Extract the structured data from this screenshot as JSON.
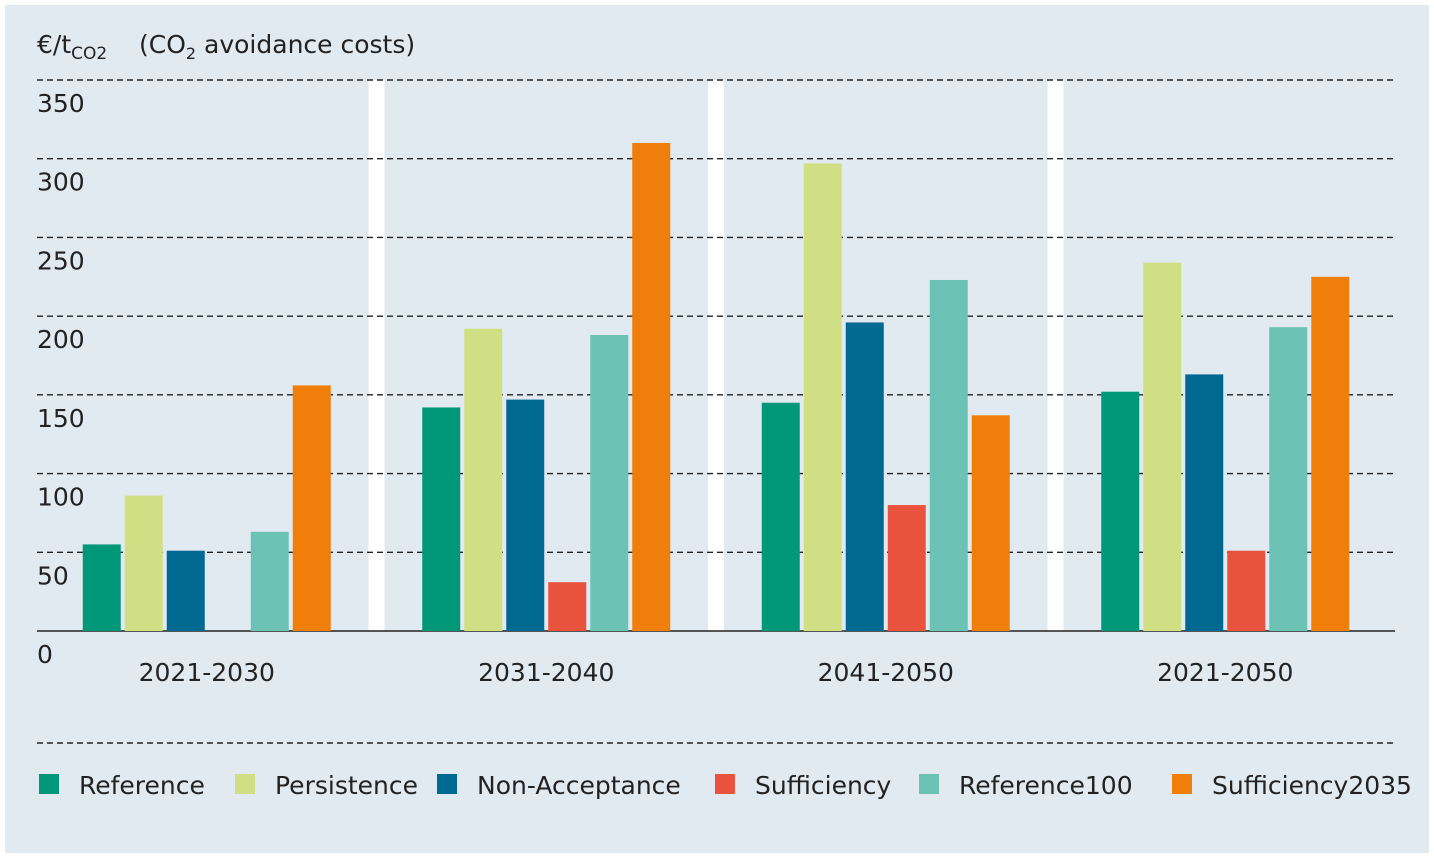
{
  "chart_data": {
    "type": "bar",
    "ylabel_unit": "€/t",
    "ylabel_unit_sub": "CO2",
    "ylabel_desc_pre": "(CO",
    "ylabel_desc_sub": "2",
    "ylabel_desc_post": " avoidance costs)",
    "ylim": [
      0,
      350
    ],
    "yticks": [
      0,
      50,
      100,
      150,
      200,
      250,
      300,
      350
    ],
    "grid": true,
    "legend_position": "bottom",
    "categories": [
      "2021-2030",
      "2031-2040",
      "2041-2050",
      "2021-2050"
    ],
    "series": [
      {
        "name": "Reference",
        "color": "#009878",
        "values": [
          55,
          142,
          145,
          152
        ]
      },
      {
        "name": "Persistence",
        "color": "#d1df84",
        "values": [
          86,
          192,
          297,
          234
        ]
      },
      {
        "name": "Non-Acceptance",
        "color": "#006991",
        "values": [
          51,
          147,
          196,
          163
        ]
      },
      {
        "name": "Sufficiency",
        "color": "#e9523c",
        "values": [
          0,
          31,
          80,
          51
        ]
      },
      {
        "name": "Reference100",
        "color": "#6cc3b5",
        "values": [
          63,
          188,
          223,
          193
        ]
      },
      {
        "name": "Sufficiency2035",
        "color": "#f07e0a",
        "values": [
          156,
          310,
          137,
          225
        ]
      }
    ]
  }
}
